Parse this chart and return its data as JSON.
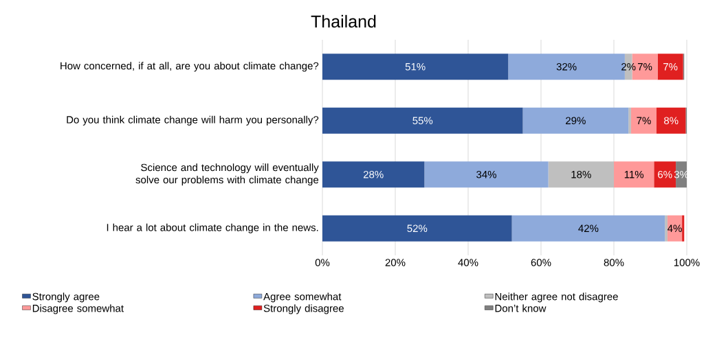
{
  "chart_data": {
    "type": "bar",
    "orientation": "horizontal",
    "stacked": true,
    "title": "Thailand",
    "categories": [
      "How concerned, if at all, are you about climate change?",
      "Do you think climate change will harm you personally?",
      "Science and technology will eventually solve our problems with climate change",
      "I hear a lot about climate change in the news."
    ],
    "series": [
      {
        "name": "Strongly agree",
        "color": "#2f5597",
        "values": [
          51,
          55,
          28,
          52
        ],
        "value_labels": [
          "51%",
          "55%",
          "28%",
          "52%"
        ]
      },
      {
        "name": "Agree somewhat",
        "color": "#8eaadb",
        "values": [
          32,
          29,
          34,
          42
        ],
        "value_labels": [
          "32%",
          "29%",
          "34%",
          "42%"
        ]
      },
      {
        "name": "Neither agree not disagree",
        "color": "#bfbfbf",
        "values": [
          2,
          0.7,
          18,
          0.7
        ],
        "value_labels": [
          "2%",
          null,
          "18%",
          null
        ]
      },
      {
        "name": "Disagree somewhat",
        "color": "#ff9999",
        "values": [
          7,
          7,
          11,
          4
        ],
        "value_labels": [
          "7%",
          "7%",
          "11%",
          "4%"
        ]
      },
      {
        "name": "Strongly disagree",
        "color": "#e02020",
        "values": [
          7,
          8,
          6,
          0.6
        ],
        "value_labels": [
          "7%",
          "8%",
          "6%",
          null
        ]
      },
      {
        "name": "Don’t know",
        "color": "#808080",
        "values": [
          0.3,
          0.3,
          3,
          0
        ],
        "value_labels": [
          null,
          null,
          "3%",
          null
        ]
      }
    ],
    "xlim": [
      0,
      100
    ],
    "xticks": [
      {
        "value": 0,
        "label": "0%"
      },
      {
        "value": 20,
        "label": "20%"
      },
      {
        "value": 40,
        "label": "40%"
      },
      {
        "value": 60,
        "label": "60%"
      },
      {
        "value": 80,
        "label": "80%"
      },
      {
        "value": 100,
        "label": "100%"
      }
    ],
    "grid": "x",
    "legend": "bottom"
  }
}
